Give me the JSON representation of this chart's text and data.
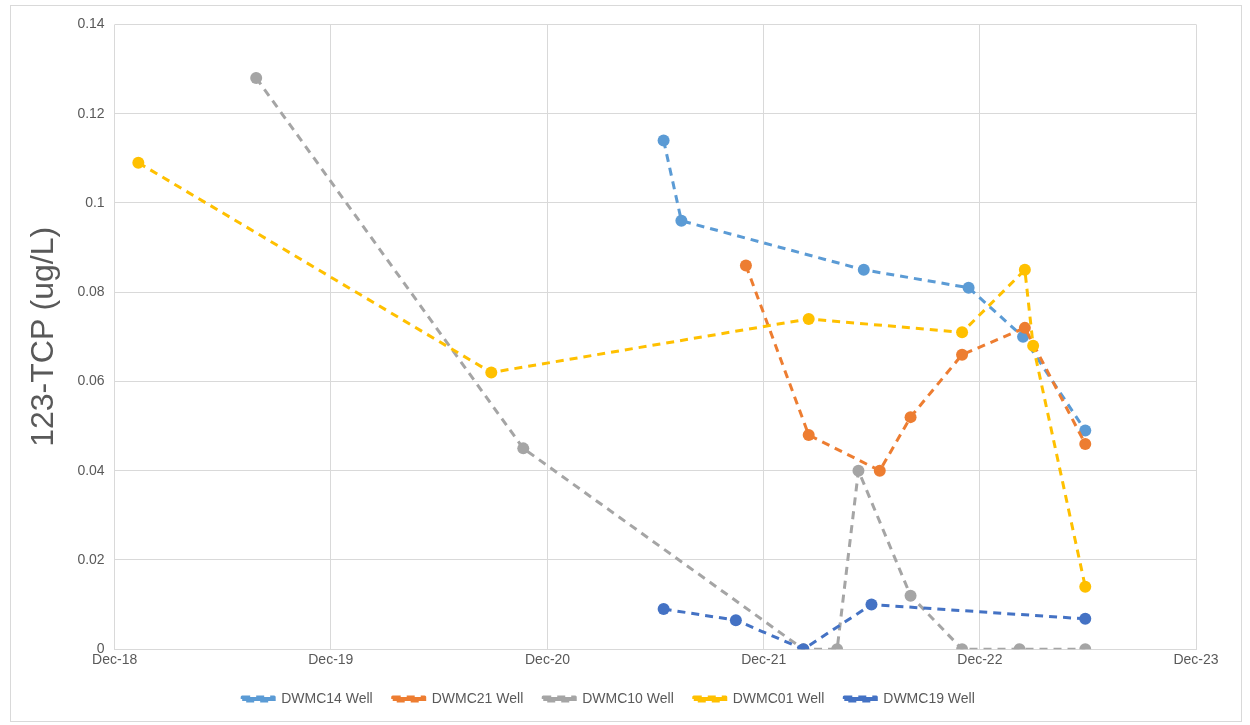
{
  "chart_data": {
    "type": "line",
    "ylabel": "123-TCP (ug/L)",
    "xlim": [
      "2018-12-01",
      "2023-12-01"
    ],
    "xticks": [
      {
        "value": "2018-12-01",
        "label": "Dec-18"
      },
      {
        "value": "2019-12-01",
        "label": "Dec-19"
      },
      {
        "value": "2020-12-01",
        "label": "Dec-20"
      },
      {
        "value": "2021-12-01",
        "label": "Dec-21"
      },
      {
        "value": "2022-12-01",
        "label": "Dec-22"
      },
      {
        "value": "2023-12-01",
        "label": "Dec-23"
      }
    ],
    "ylim": [
      0,
      0.14
    ],
    "yticks": [
      0,
      0.02,
      0.04,
      0.06,
      0.08,
      0.1,
      0.12,
      0.14
    ],
    "grid": true,
    "legend": "bottom",
    "marker": "circle",
    "line_style": "dashed",
    "series": [
      {
        "name": "DWMC14 Well",
        "color": "#5b9bd5",
        "x": [
          "2021-06-15",
          "2021-07-15",
          "2022-05-19",
          "2022-11-12",
          "2023-02-12",
          "2023-05-28"
        ],
        "values": [
          0.114,
          0.096,
          0.085,
          0.081,
          0.07,
          0.049
        ]
      },
      {
        "name": "DWMC21 Well",
        "color": "#ed7d31",
        "x": [
          "2021-11-01",
          "2022-02-15",
          "2022-06-15",
          "2022-08-06",
          "2022-11-01",
          "2023-02-15",
          "2023-05-28"
        ],
        "values": [
          0.086,
          0.048,
          0.04,
          0.052,
          0.066,
          0.072,
          0.046
        ]
      },
      {
        "name": "DWMC10 Well",
        "color": "#a5a5a5",
        "x": [
          "2019-07-28",
          "2020-10-21",
          "2022-02-06",
          "2022-04-04",
          "2022-05-10",
          "2022-08-06",
          "2022-11-01",
          "2023-02-06",
          "2023-05-28"
        ],
        "values": [
          0.128,
          0.045,
          0,
          0,
          0.04,
          0.012,
          0,
          0,
          0
        ]
      },
      {
        "name": "DWMC01 Well",
        "color": "#ffc000",
        "x": [
          "2019-01-10",
          "2020-08-28",
          "2022-02-15",
          "2022-11-01",
          "2023-02-15",
          "2023-03-01",
          "2023-05-28"
        ],
        "values": [
          0.109,
          0.062,
          0.074,
          0.071,
          0.085,
          0.068,
          0.014
        ]
      },
      {
        "name": "DWMC19 Well",
        "color": "#4472c4",
        "x": [
          "2021-06-15",
          "2021-10-15",
          "2022-02-06",
          "2022-06-01",
          "2023-05-28"
        ],
        "values": [
          0.009,
          0.0065,
          0,
          0.01,
          0.0068
        ]
      }
    ]
  }
}
